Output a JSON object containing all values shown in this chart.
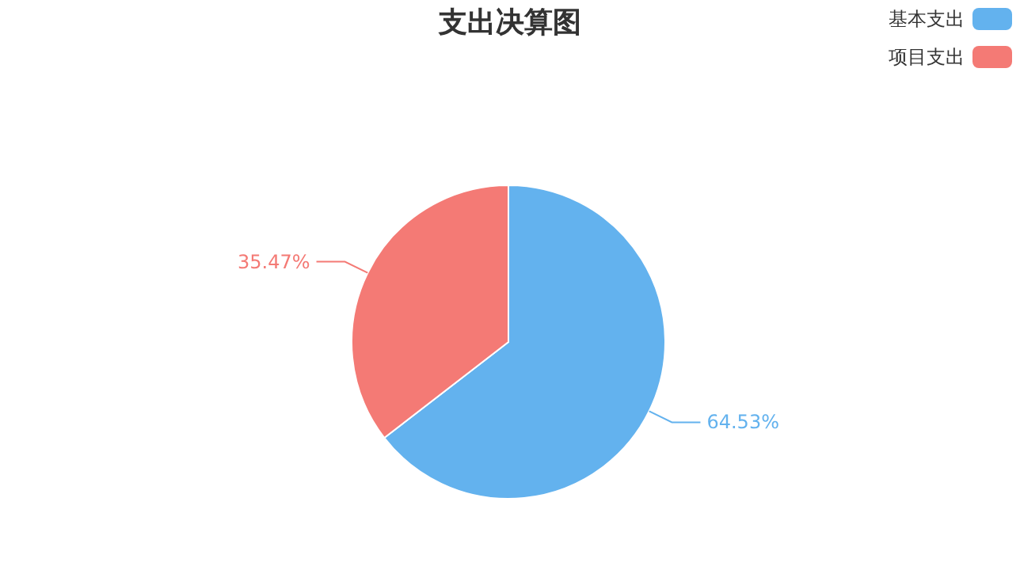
{
  "chart_data": {
    "type": "pie",
    "title": "支出决算图",
    "categories": [
      "基本支出",
      "项目支出"
    ],
    "values": [
      64.53,
      35.47
    ],
    "colors": [
      "#63b2ee",
      "#f47a75"
    ],
    "value_labels": [
      "64.53%",
      "35.47%"
    ],
    "legend": "top right"
  }
}
